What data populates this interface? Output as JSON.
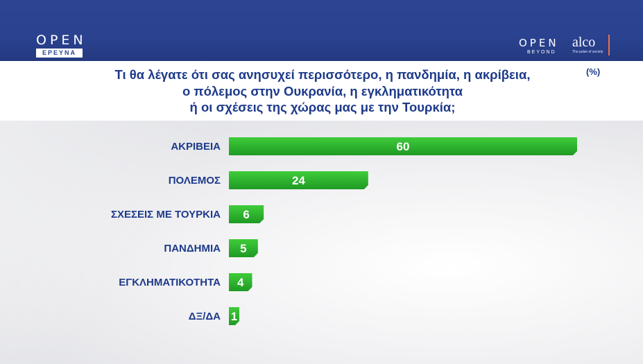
{
  "header": {
    "logo_left": "OPEN",
    "logo_left_sub": "ΕΡΕΥΝΑ",
    "logo_right": "OPEN",
    "logo_right_sub": "BEYOND",
    "brand": "alco",
    "brand_sub": "The pulse of society"
  },
  "colors": {
    "header_bg": "#2a4290",
    "title_text": "#1d3a8a",
    "bar": "#2fb52f"
  },
  "chart_data": {
    "type": "bar",
    "orientation": "horizontal",
    "title": "Τι θα λέγατε ότι σας ανησυχεί περισσότερο, η πανδημία, η ακρίβεια,\nο πόλεμος στην Ουκρανία, η εγκληματικότητα\nή οι σχέσεις της χώρας μας με την Τουρκία;",
    "unit": "(%)",
    "categories": [
      "ΑΚΡΙΒΕΙΑ",
      "ΠΟΛΕΜΟΣ",
      "ΣΧΕΣΕΙΣ ΜΕ ΤΟΥΡΚΙΑ",
      "ΠΑΝΔΗΜΙΑ",
      "ΕΓΚΛΗΜΑΤΙΚΟΤΗΤΑ",
      "ΔΞ/ΔΑ"
    ],
    "values": [
      60,
      24,
      6,
      5,
      4,
      1
    ],
    "xlim": [
      0,
      60
    ],
    "grid": false,
    "legend": false
  }
}
